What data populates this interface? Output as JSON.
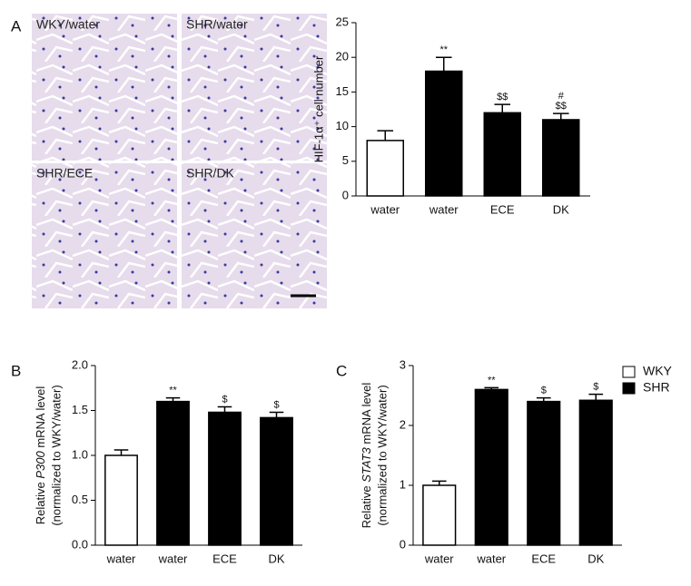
{
  "panel_labels": [
    "A",
    "B",
    "C"
  ],
  "micrograph_labels": [
    "WKY/water",
    "SHR/water",
    "SHR/ECE",
    "SHR/DK"
  ],
  "legend": [
    {
      "name": "WKY",
      "color": "#ffffff"
    },
    {
      "name": "SHR",
      "color": "#000000"
    }
  ],
  "chart_data": [
    {
      "type": "bar",
      "ylabel": [
        "HIF-1α⁺ cell number"
      ],
      "categories": [
        "water",
        "water",
        "ECE",
        "DK"
      ],
      "values": [
        8,
        18,
        12,
        11
      ],
      "errors": [
        1.4,
        2,
        1.2,
        0.9
      ],
      "colors": [
        "#ffffff",
        "#000000",
        "#000000",
        "#000000"
      ],
      "annotations": [
        null,
        [
          "**"
        ],
        [
          "$$"
        ],
        [
          "#",
          "$$"
        ]
      ],
      "ylim": [
        0,
        25
      ],
      "yticks": [
        0,
        5,
        10,
        15,
        20,
        25
      ]
    },
    {
      "type": "bar",
      "ylabel": [
        {
          "prefix": "Relative ",
          "gene": "P300",
          "suffix": " mRNA level"
        },
        "(normalized to WKY/water)"
      ],
      "categories": [
        "water",
        "water",
        "ECE",
        "DK"
      ],
      "values": [
        1.0,
        1.6,
        1.48,
        1.42
      ],
      "errors": [
        0.06,
        0.04,
        0.06,
        0.06
      ],
      "colors": [
        "#ffffff",
        "#000000",
        "#000000",
        "#000000"
      ],
      "annotations": [
        null,
        [
          "**"
        ],
        [
          "$"
        ],
        [
          "$"
        ]
      ],
      "ylim": [
        0,
        2
      ],
      "yticks": [
        {
          "value": 0,
          "label": "0.0"
        },
        {
          "value": 0.5,
          "label": "0.5"
        },
        {
          "value": 1,
          "label": "1.0"
        },
        {
          "value": 1.5,
          "label": "1.5"
        },
        {
          "value": 2,
          "label": "2.0"
        }
      ]
    },
    {
      "type": "bar",
      "ylabel": [
        {
          "prefix": "Relative ",
          "gene": "STAT3",
          "suffix": " mRNA level"
        },
        "(normalized to WKY/water)"
      ],
      "categories": [
        "water",
        "water",
        "ECE",
        "DK"
      ],
      "values": [
        1.0,
        2.6,
        2.4,
        2.42
      ],
      "errors": [
        0.07,
        0.03,
        0.06,
        0.1
      ],
      "colors": [
        "#ffffff",
        "#000000",
        "#000000",
        "#000000"
      ],
      "annotations": [
        null,
        [
          "**"
        ],
        [
          "$"
        ],
        [
          "$"
        ]
      ],
      "ylim": [
        0,
        3
      ],
      "yticks": [
        0,
        1,
        2,
        3
      ]
    }
  ]
}
